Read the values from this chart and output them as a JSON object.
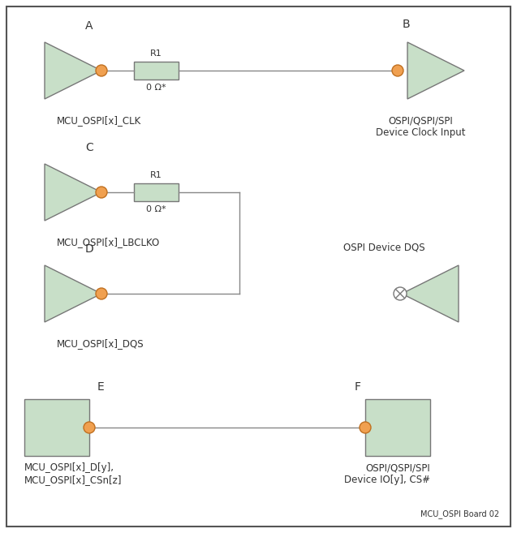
{
  "bg_color": "#ffffff",
  "border_color": "#555555",
  "tri_fill": "#c8dfc8",
  "tri_edge": "#777777",
  "dot_fill": "#f0a050",
  "dot_edge": "#c07020",
  "res_fill": "#c8dfc8",
  "res_edge": "#777777",
  "line_color": "#888888",
  "box_fill": "#c8dfc8",
  "box_edge": "#777777",
  "text_color": "#333333",
  "label_A": "A",
  "label_B": "B",
  "label_C": "C",
  "label_D": "D",
  "label_E": "E",
  "label_F": "F",
  "res_label_A": "R1",
  "res_val_A": "0 Ω*",
  "res_label_C": "R1",
  "res_val_C": "0 Ω*",
  "sig_A": "MCU_OSPI[x]_CLK",
  "sig_B": "OSPI/QSPI/SPI\nDevice Clock Input",
  "sig_C": "MCU_OSPI[x]_LBCLKO",
  "sig_D": "MCU_OSPI[x]_DQS",
  "sig_E": "MCU_OSPI[x]_D[y],\nMCU_OSPI[x]_CSn[z]",
  "sig_F": "OSPI/QSPI/SPI\nDevice IO[y], CS#",
  "sig_B2": "OSPI Device DQS",
  "footer": "MCU_OSPI Board 02"
}
